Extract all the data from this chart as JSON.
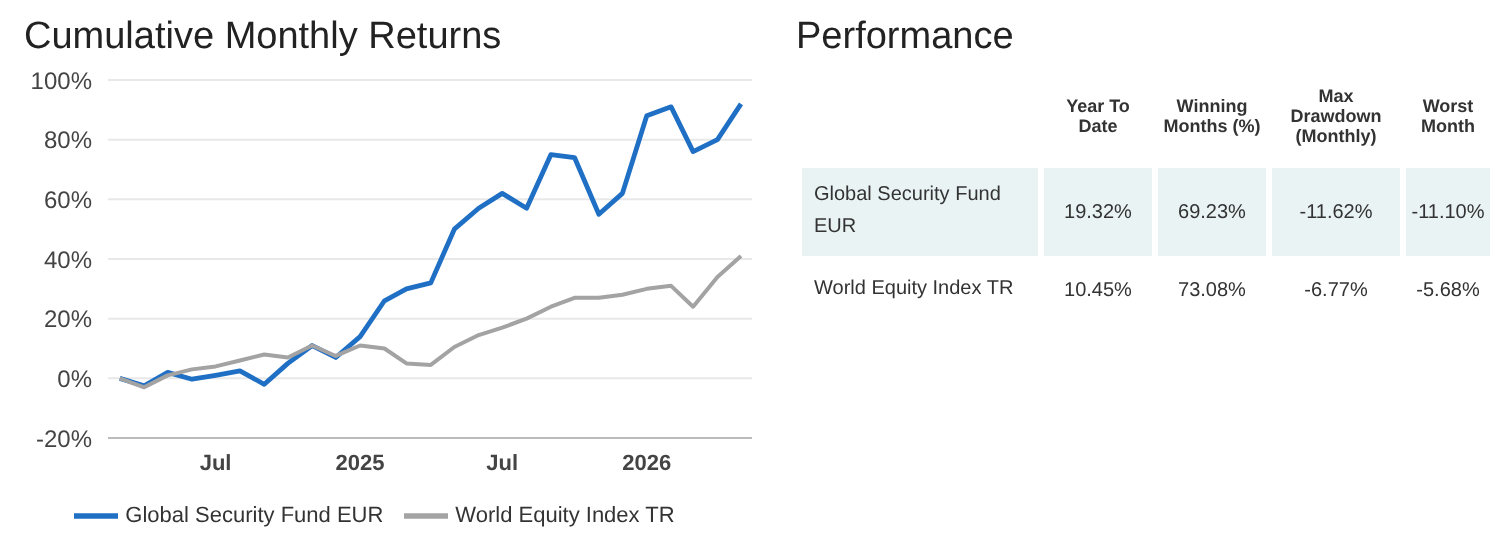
{
  "chart_data": [
    {
      "type": "line",
      "title": "Cumulative Monthly Returns",
      "x": [
        "2024-03",
        "2024-04",
        "2024-05",
        "2024-06",
        "2024-07",
        "2024-08",
        "2024-09",
        "2024-10",
        "2024-11",
        "2024-12",
        "2025-01",
        "2025-02",
        "2025-03",
        "2025-04",
        "2025-05",
        "2025-06",
        "2025-07",
        "2025-08",
        "2025-09",
        "2025-10",
        "2025-11",
        "2025-12",
        "2026-01",
        "2026-02",
        "2026-03",
        "2026-04",
        "2026-05"
      ],
      "series": [
        {
          "name": "Global Security Fund EUR",
          "color": "#1f6fc5",
          "values": [
            0,
            -2.5,
            2,
            -0.3,
            1,
            2.5,
            -2,
            5,
            11,
            7,
            14,
            26,
            30,
            32,
            50,
            57,
            62,
            57,
            75,
            74,
            55,
            62,
            88,
            91,
            76,
            80,
            92
          ]
        },
        {
          "name": "World Equity Index TR",
          "color": "#a3a3a3",
          "values": [
            0,
            -3,
            1,
            3,
            4,
            6,
            8,
            7,
            11,
            7.5,
            11,
            10,
            5,
            4.5,
            10.5,
            14.5,
            17,
            20,
            24,
            27,
            27,
            28,
            30,
            31,
            24,
            34,
            41
          ]
        }
      ],
      "xlim": [
        "2024-02-15",
        "2026-05-15"
      ],
      "xticks": [
        {
          "value": "2024-07",
          "label": "Jul"
        },
        {
          "value": "2025-01",
          "label": "2025"
        },
        {
          "value": "2025-07",
          "label": "Jul"
        },
        {
          "value": "2026-01",
          "label": "2026"
        }
      ],
      "ylim": [
        -20,
        100
      ],
      "yticks": [
        {
          "value": -20,
          "label": "-20%"
        },
        {
          "value": 0,
          "label": "0%"
        },
        {
          "value": 20,
          "label": "20%"
        },
        {
          "value": 40,
          "label": "40%"
        },
        {
          "value": 60,
          "label": "60%"
        },
        {
          "value": 80,
          "label": "80%"
        },
        {
          "value": 100,
          "label": "100%"
        }
      ],
      "grid": "y",
      "legend": "bottom",
      "marker": "none",
      "line_style": "solid"
    },
    {
      "type": "other",
      "title": "Performance",
      "categories": [
        "Year To Date",
        "Winning Months (%)",
        "Max Drawdown (Monthly)",
        "Worst Month"
      ],
      "y_categories": [
        "Global Security Fund EUR",
        "World Equity Index TR"
      ],
      "cell_labels": [
        [
          "19.32%",
          "69.23%",
          "-11.62%",
          "-11.10%"
        ],
        [
          "10.45%",
          "73.08%",
          "-6.77%",
          "-5.68%"
        ]
      ]
    }
  ]
}
